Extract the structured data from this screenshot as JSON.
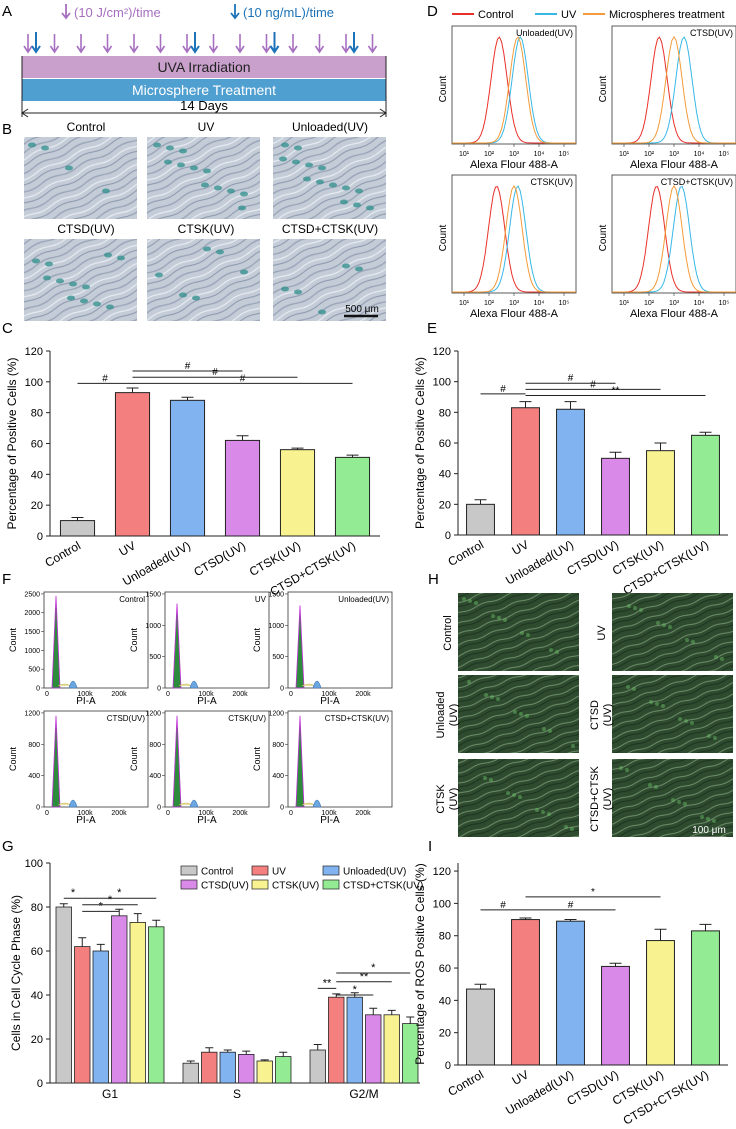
{
  "colors": {
    "control": "#c8c8c8",
    "uv": "#f47f7f",
    "unloaded": "#80b3f0",
    "ctsd": "#d98ae8",
    "ctsk": "#f8f290",
    "ctsd_ctsk": "#93ec93",
    "purple_arrow": "#a66fc0",
    "blue_arrow": "#1d73b8",
    "uva_bar": "#c9a0cc",
    "micro_bar": "#4f9fd1",
    "hist_control": "#e8302a",
    "hist_uv": "#38b8e6",
    "hist_micro": "#f39b3a"
  },
  "panel_a": {
    "letter": "A",
    "uva_dose": "(10 J/cm²)/time",
    "micro_dose": "(10 ng/mL)/time",
    "uva_label": "UVA Irradiation",
    "micro_label": "Microsphere Treatment",
    "duration": "14 Days",
    "purple_arrow_count": 14,
    "blue_arrow_count": 5
  },
  "panel_b": {
    "letter": "B",
    "labels": [
      "Control",
      "UV",
      "Unloaded(UV)",
      "CTSD(UV)",
      "CTSK(UV)",
      "CTSD+CTSK(UV)"
    ],
    "scale_bar": "500 μm"
  },
  "panel_d": {
    "letter": "D",
    "legend": [
      "Control",
      "UV",
      "Microspheres treatment"
    ],
    "panels": [
      "Unloaded(UV)",
      "CTSD(UV)",
      "CTSK(UV)",
      "CTSD+CTSK(UV)"
    ],
    "xlabel": "Alexa Flour 488-A",
    "ylabel": "Count",
    "ticks": [
      "10¹",
      "10²",
      "10³",
      "10⁴",
      "10⁵"
    ]
  },
  "panel_f": {
    "letter": "F",
    "panels": [
      "Control",
      "UV",
      "Unloaded(UV)",
      "CTSD(UV)",
      "CTSK(UV)",
      "CTSD+CTSK(UV)"
    ],
    "xlabel": "PI-A",
    "ylabel": "Count",
    "xticks": [
      "0",
      "100k",
      "200k"
    ],
    "yticks_top": [
      [
        "0",
        "500",
        "1000",
        "1500",
        "2000",
        "2500"
      ],
      [
        "0",
        "500",
        "1000",
        "1500"
      ],
      [
        "0",
        "500",
        "1000",
        "1500"
      ]
    ],
    "yticks_bottom": [
      [
        "0",
        "400",
        "800",
        "1200"
      ],
      [
        "0",
        "400",
        "800",
        "1200"
      ],
      [
        "0",
        "400",
        "800",
        "1200"
      ]
    ]
  },
  "panel_h": {
    "letter": "H",
    "labels": [
      "Control",
      "UV",
      "Unloaded (UV)",
      "CTSD (UV)",
      "CTSK (UV)",
      "CTSD+CTSK (UV)"
    ],
    "scale_bar": "100 μm"
  },
  "chart_data": [
    {
      "panel": "C",
      "type": "bar",
      "categories": [
        "Control",
        "UV",
        "Unloaded(UV)",
        "CTSD(UV)",
        "CTSK(UV)",
        "CTSD+CTSK(UV)"
      ],
      "values": [
        10,
        93,
        88,
        62,
        56,
        51
      ],
      "errors": [
        2,
        3,
        2,
        3,
        1,
        1.5
      ],
      "ylabel": "Percentage of Positive Cells (%)",
      "ylim": [
        0,
        120
      ],
      "yticks": [
        0,
        20,
        40,
        60,
        80,
        100,
        120
      ],
      "annotations": [
        {
          "from": 0,
          "to": 1,
          "label": "#",
          "y": 99
        },
        {
          "from": 1,
          "to": 3,
          "label": "#",
          "y": 107
        },
        {
          "from": 1,
          "to": 4,
          "label": "#",
          "y": 103
        },
        {
          "from": 1,
          "to": 5,
          "label": "#",
          "y": 99
        }
      ]
    },
    {
      "panel": "E",
      "type": "bar",
      "categories": [
        "Control",
        "UV",
        "Unloaded(UV)",
        "CTSD(UV)",
        "CTSK(UV)",
        "CTSD+CTSK(UV)"
      ],
      "values": [
        20,
        83,
        82,
        50,
        55,
        65
      ],
      "errors": [
        3,
        4,
        5,
        4,
        5,
        2
      ],
      "ylabel": "Percentage of Positive Cells (%)",
      "ylim": [
        0,
        120
      ],
      "yticks": [
        0,
        20,
        40,
        60,
        80,
        100,
        120
      ],
      "annotations": [
        {
          "from": 0,
          "to": 1,
          "label": "#",
          "y": 92
        },
        {
          "from": 1,
          "to": 3,
          "label": "#",
          "y": 99
        },
        {
          "from": 1,
          "to": 4,
          "label": "#",
          "y": 95
        },
        {
          "from": 1,
          "to": 5,
          "label": "**",
          "y": 91
        }
      ]
    },
    {
      "panel": "G",
      "type": "bar",
      "categories": [
        "G1",
        "S",
        "G2/M"
      ],
      "series": [
        {
          "name": "Control",
          "values": [
            80,
            9,
            15
          ],
          "errors": [
            1.5,
            1,
            2.5
          ]
        },
        {
          "name": "UV",
          "values": [
            62,
            14,
            39
          ],
          "errors": [
            4,
            2,
            1.5
          ]
        },
        {
          "name": "Unloaded(UV)",
          "values": [
            60,
            14,
            39
          ],
          "errors": [
            3,
            1,
            2
          ]
        },
        {
          "name": "CTSD(UV)",
          "values": [
            76,
            13,
            31
          ],
          "errors": [
            3,
            1.5,
            3
          ]
        },
        {
          "name": "CTSK(UV)",
          "values": [
            73,
            10,
            31
          ],
          "errors": [
            4,
            0.5,
            2
          ]
        },
        {
          "name": "CTSD+CTSK(UV)",
          "values": [
            71,
            12,
            27
          ],
          "errors": [
            3,
            2,
            3
          ]
        }
      ],
      "ylabel": "Cells in Cell Cycle Phase (%)",
      "ylim": [
        0,
        100
      ],
      "yticks": [
        0,
        20,
        40,
        60,
        80,
        100
      ],
      "legend": "top-right",
      "annotations": [
        {
          "group": 0,
          "from": 0,
          "to": 1,
          "label": "*",
          "y": 84
        },
        {
          "group": 0,
          "from": 1,
          "to": 3,
          "label": "*",
          "y": 78
        },
        {
          "group": 0,
          "from": 1,
          "to": 4,
          "label": "*",
          "y": 81
        },
        {
          "group": 0,
          "from": 1,
          "to": 5,
          "label": "*",
          "y": 84
        },
        {
          "group": 2,
          "from": 0,
          "to": 1,
          "label": "**",
          "y": 43
        },
        {
          "group": 2,
          "from": 1,
          "to": 3,
          "label": "*",
          "y": 40
        },
        {
          "group": 2,
          "from": 1,
          "to": 4,
          "label": "**",
          "y": 46
        },
        {
          "group": 2,
          "from": 1,
          "to": 5,
          "label": "*",
          "y": 50
        }
      ]
    },
    {
      "panel": "I",
      "type": "bar",
      "categories": [
        "Control",
        "UV",
        "Unloaded(UV)",
        "CTSD(UV)",
        "CTSK(UV)",
        "CTSD+CTSK(UV)"
      ],
      "values": [
        47,
        90,
        89,
        61,
        77,
        83
      ],
      "errors": [
        3,
        1,
        1,
        2,
        7,
        4
      ],
      "ylabel": "Percentage of ROS Positive Cells (%)",
      "ylim": [
        0,
        125
      ],
      "yticks": [
        0,
        20,
        40,
        60,
        80,
        100,
        120
      ],
      "annotations": [
        {
          "from": 0,
          "to": 1,
          "label": "#",
          "y": 96
        },
        {
          "from": 1,
          "to": 3,
          "label": "#",
          "y": 96
        },
        {
          "from": 1,
          "to": 4,
          "label": "*",
          "y": 104
        }
      ]
    }
  ]
}
